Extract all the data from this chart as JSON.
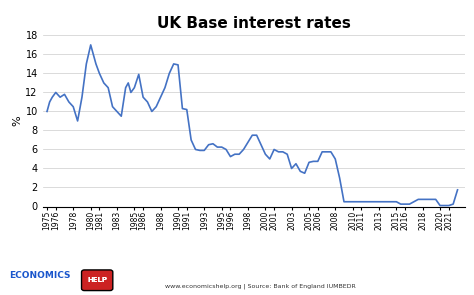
{
  "title": "UK Base interest rates",
  "ylabel": "%",
  "line_color": "#4472C4",
  "background_color": "#ffffff",
  "footer_source": "www.economicshelp.org | Source: Bank of England IUMBEDR",
  "ylim": [
    0,
    18
  ],
  "yticks": [
    0,
    2,
    4,
    6,
    8,
    10,
    12,
    14,
    16,
    18
  ],
  "xtick_labels": [
    "1975",
    "1976",
    "1978",
    "1980",
    "1981",
    "1983",
    "1985",
    "1986",
    "1988",
    "1990",
    "1991",
    "1993",
    "1995",
    "1996",
    "1998",
    "2000",
    "2001",
    "2003",
    "2005",
    "2006",
    "2008",
    "2010",
    "2011",
    "2013",
    "2015",
    "2016",
    "2018",
    "2020",
    "2021"
  ],
  "xtick_years": [
    1975,
    1976,
    1978,
    1980,
    1981,
    1983,
    1985,
    1986,
    1988,
    1990,
    1991,
    1993,
    1995,
    1996,
    1998,
    2000,
    2001,
    2003,
    2005,
    2006,
    2008,
    2010,
    2011,
    2013,
    2015,
    2016,
    2018,
    2020,
    2021
  ],
  "years": [
    1975,
    1975.3,
    1975.6,
    1976,
    1976.5,
    1977,
    1977.5,
    1978,
    1978.5,
    1979,
    1979.5,
    1980,
    1980.3,
    1980.6,
    1981,
    1981.5,
    1982,
    1982.5,
    1983,
    1983.5,
    1984,
    1984.3,
    1984.6,
    1985,
    1985.5,
    1986,
    1986.5,
    1987,
    1987.5,
    1988,
    1988.5,
    1989,
    1989.5,
    1990,
    1990.5,
    1991,
    1991.5,
    1992,
    1992.5,
    1993,
    1993.5,
    1994,
    1994.5,
    1995,
    1995.5,
    1996,
    1996.5,
    1997,
    1997.5,
    1998,
    1998.5,
    1999,
    1999.5,
    2000,
    2000.5,
    2001,
    2001.5,
    2002,
    2002.5,
    2003,
    2003.5,
    2004,
    2004.5,
    2005,
    2005.5,
    2006,
    2006.5,
    2007,
    2007.5,
    2008,
    2008.5,
    2009,
    2009.5,
    2010,
    2010.5,
    2011,
    2011.5,
    2012,
    2012.5,
    2013,
    2013.5,
    2014,
    2014.5,
    2015,
    2015.5,
    2016,
    2016.5,
    2017,
    2017.5,
    2018,
    2018.5,
    2019,
    2019.5,
    2020,
    2020.3,
    2020.7,
    2021,
    2021.5,
    2022
  ],
  "rates": [
    10.0,
    11.0,
    11.5,
    12.0,
    11.5,
    11.8,
    11.0,
    10.5,
    9.0,
    11.5,
    15.0,
    17.0,
    16.0,
    15.0,
    14.0,
    13.0,
    12.5,
    10.5,
    10.0,
    9.5,
    12.5,
    13.0,
    12.0,
    12.5,
    13.9,
    11.5,
    11.0,
    10.0,
    10.5,
    11.5,
    12.5,
    14.0,
    15.0,
    14.9,
    10.3,
    10.2,
    7.0,
    6.0,
    5.9,
    5.9,
    6.5,
    6.6,
    6.25,
    6.25,
    6.0,
    5.25,
    5.5,
    5.5,
    6.0,
    6.75,
    7.5,
    7.5,
    6.5,
    5.5,
    5.0,
    6.0,
    5.75,
    5.75,
    5.5,
    4.0,
    4.5,
    3.7,
    3.5,
    4.65,
    4.75,
    4.75,
    5.75,
    5.75,
    5.75,
    5.0,
    3.0,
    0.5,
    0.5,
    0.5,
    0.5,
    0.5,
    0.5,
    0.5,
    0.5,
    0.5,
    0.5,
    0.5,
    0.5,
    0.5,
    0.25,
    0.25,
    0.25,
    0.5,
    0.75,
    0.75,
    0.75,
    0.75,
    0.75,
    0.1,
    0.1,
    0.1,
    0.1,
    0.25,
    1.75
  ]
}
